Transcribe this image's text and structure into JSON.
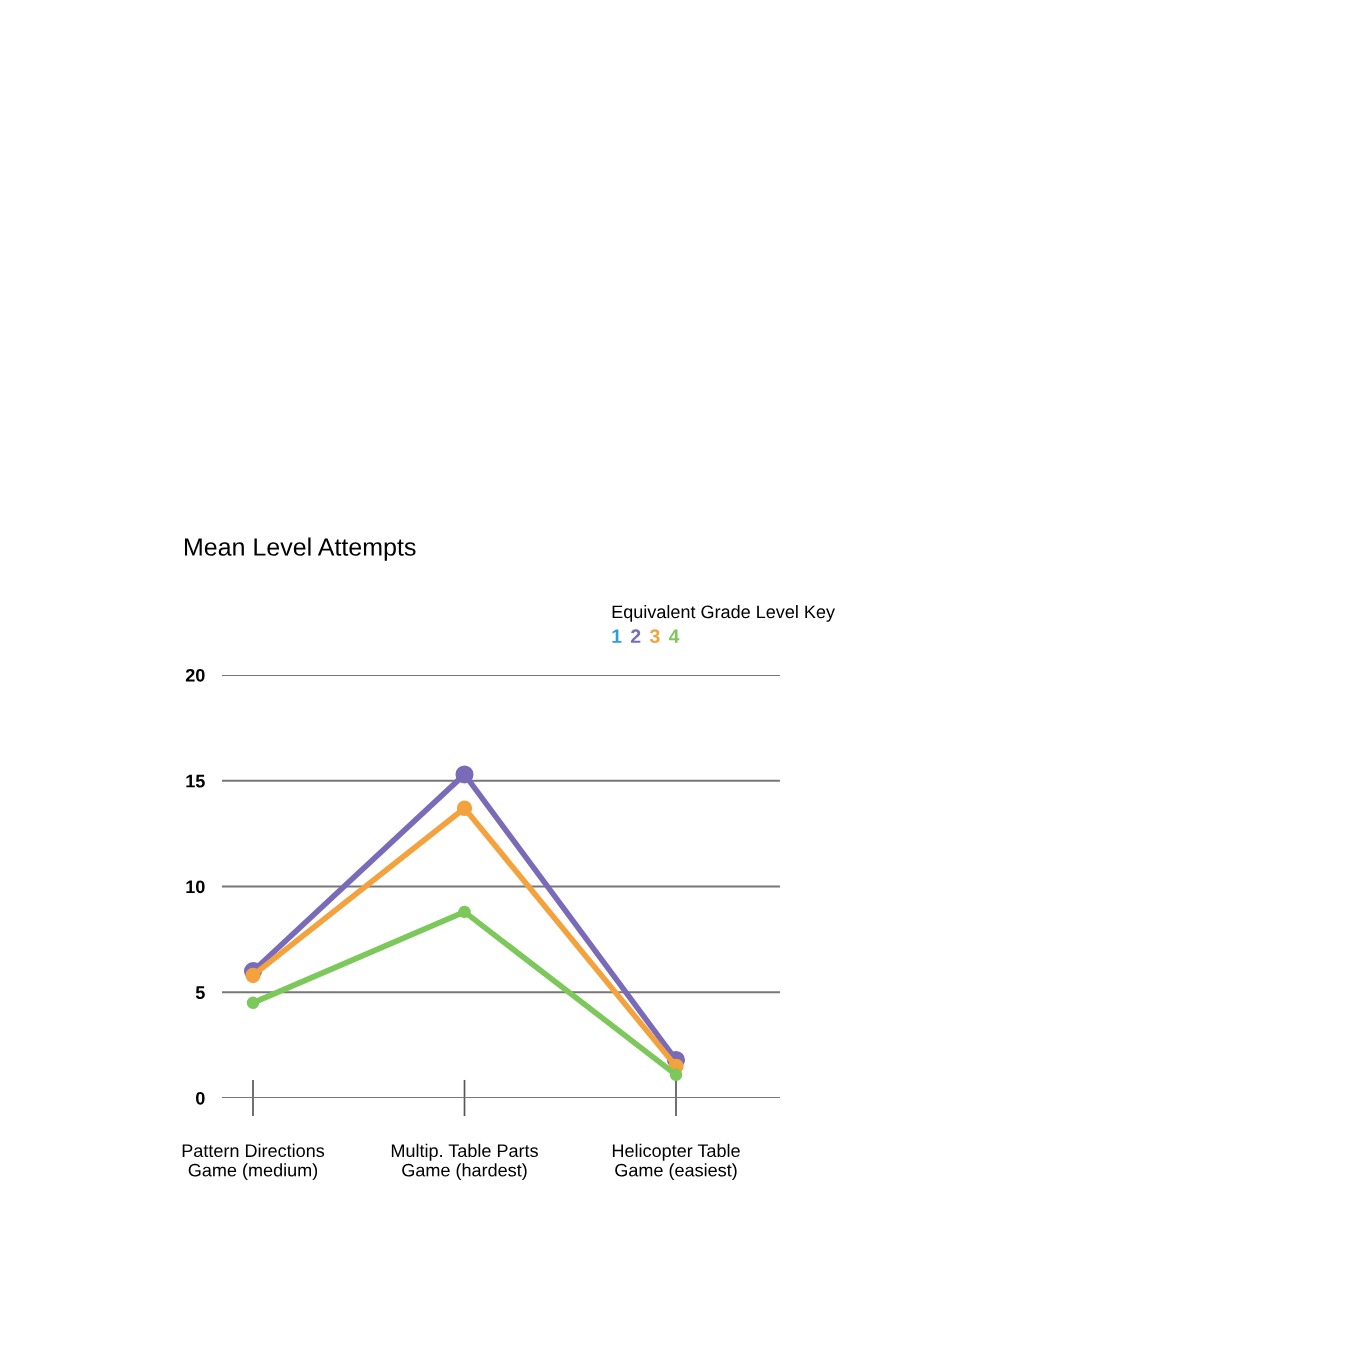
{
  "chart_data": {
    "type": "line",
    "title": "Mean Level Attempts",
    "legend_title": "Equivalent Grade Level Key",
    "categories": [
      "Pattern Directions\nGame (medium)",
      "Multip. Table Parts\nGame (hardest)",
      "Helicopter Table\nGame (easiest)"
    ],
    "series": [
      {
        "name": "1",
        "color": "#2a9ee0",
        "values": [
          null,
          null,
          null
        ]
      },
      {
        "name": "2",
        "color": "#7a6bb8",
        "values": [
          6.0,
          15.3,
          1.8
        ]
      },
      {
        "name": "3",
        "color": "#f4a23d",
        "values": [
          5.8,
          13.7,
          1.5
        ]
      },
      {
        "name": "4",
        "color": "#7dc85a",
        "values": [
          4.5,
          8.8,
          1.1
        ]
      }
    ],
    "ylim": [
      0,
      20
    ],
    "yticks": [
      0,
      5,
      10,
      15,
      20
    ],
    "grid": "y",
    "legend": "top",
    "marker": "circle",
    "line_style": "solid"
  }
}
